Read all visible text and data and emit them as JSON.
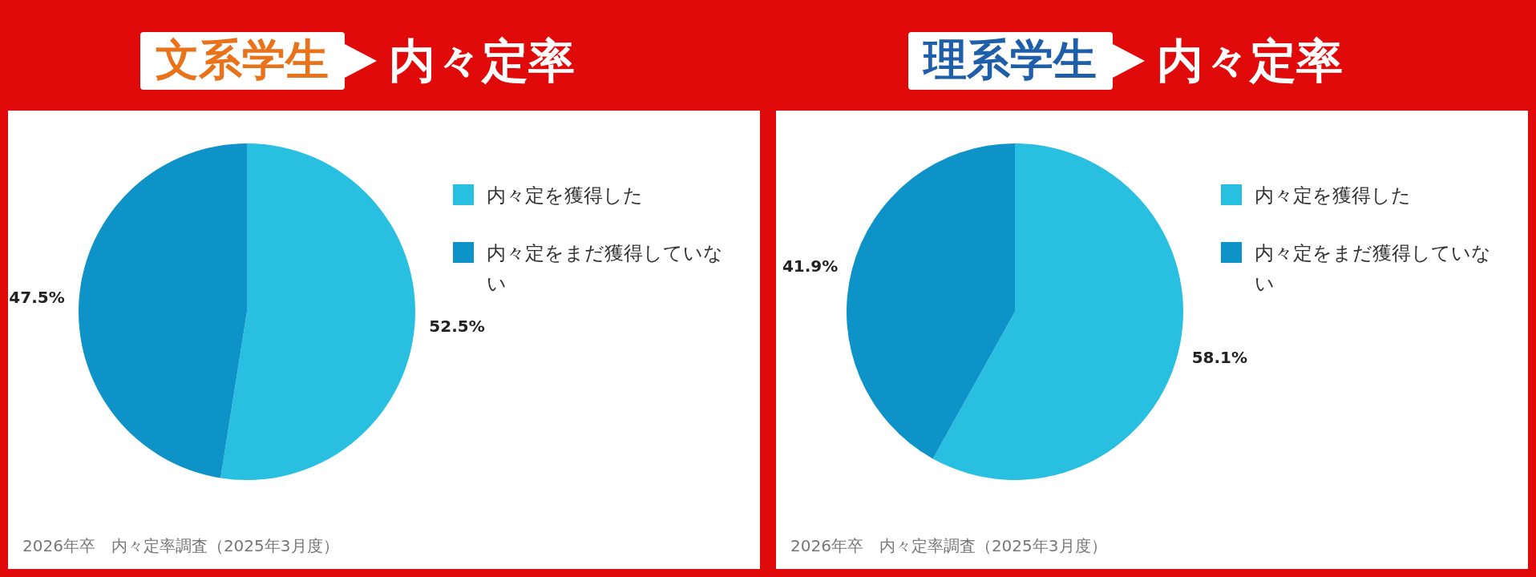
{
  "chart_data": [
    {
      "type": "pie",
      "title": "文系学生",
      "subtitle": "内々定率",
      "categories": [
        "内々定を獲得した",
        "内々定をまだ獲得していない"
      ],
      "values": [
        52.5,
        47.5
      ],
      "colors": [
        "#29bfe0",
        "#0e93c9"
      ],
      "value_labels": [
        "52.5%",
        "47.5%"
      ],
      "legend": "right",
      "annotations": [
        "2026年卒　内々定率調査（2025年3月度）"
      ]
    },
    {
      "type": "pie",
      "title": "理系学生",
      "subtitle": "内々定率",
      "categories": [
        "内々定を獲得した",
        "内々定をまだ獲得していない"
      ],
      "values": [
        58.1,
        41.9
      ],
      "colors": [
        "#29bfe0",
        "#0e93c9"
      ],
      "value_labels": [
        "58.1%",
        "41.9%"
      ],
      "legend": "right",
      "annotations": [
        "2026年卒　内々定率調査（2025年3月度）"
      ]
    }
  ]
}
